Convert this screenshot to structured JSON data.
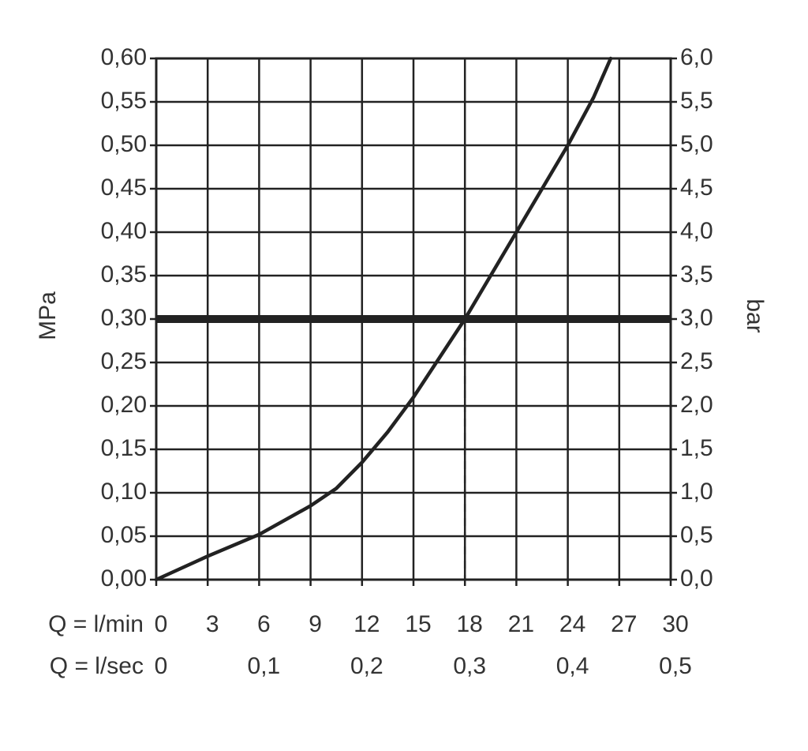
{
  "chart_data": {
    "type": "line",
    "y_label": "MPa",
    "y2_label": "bar",
    "x_row_label": "Q = l/min",
    "x2_row_label": "Q = l/sec",
    "color": "#222222",
    "x": [
      0,
      3,
      6,
      9,
      10.5,
      12,
      13.5,
      15,
      16.5,
      18,
      19.5,
      21,
      22.5,
      24,
      25.5,
      26.5
    ],
    "values": [
      0,
      0.027,
      0.052,
      0.085,
      0.105,
      0.135,
      0.17,
      0.21,
      0.255,
      0.3,
      0.35,
      0.4,
      0.45,
      0.5,
      0.555,
      0.6
    ],
    "xlim": [
      0,
      30
    ],
    "xticks": [
      0,
      3,
      6,
      9,
      12,
      15,
      18,
      21,
      24,
      27,
      30
    ],
    "x2lim": [
      0,
      0.5
    ],
    "x2ticks": [
      0,
      {
        "value": 0.1,
        "label": "0,1"
      },
      {
        "value": 0.2,
        "label": "0,2"
      },
      {
        "value": 0.3,
        "label": "0,3"
      },
      {
        "value": 0.4,
        "label": "0,4"
      },
      {
        "value": 0.5,
        "label": "0,5"
      }
    ],
    "ylim": [
      0,
      0.6
    ],
    "yticks": [
      {
        "value": 0,
        "label": "0,00"
      },
      {
        "value": 0.05,
        "label": "0,05"
      },
      {
        "value": 0.1,
        "label": "0,10"
      },
      {
        "value": 0.15,
        "label": "0,15"
      },
      {
        "value": 0.2,
        "label": "0,20"
      },
      {
        "value": 0.25,
        "label": "0,25"
      },
      {
        "value": 0.3,
        "label": "0,30"
      },
      {
        "value": 0.35,
        "label": "0,35"
      },
      {
        "value": 0.4,
        "label": "0,40"
      },
      {
        "value": 0.45,
        "label": "0,45"
      },
      {
        "value": 0.5,
        "label": "0,50"
      },
      {
        "value": 0.55,
        "label": "0,55"
      },
      {
        "value": 0.6,
        "label": "0,60"
      }
    ],
    "y2lim": [
      0,
      6
    ],
    "y2ticks": [
      {
        "value": 0,
        "label": "0,0"
      },
      {
        "value": 0.5,
        "label": "0,5"
      },
      {
        "value": 1,
        "label": "1,0"
      },
      {
        "value": 1.5,
        "label": "1,5"
      },
      {
        "value": 2,
        "label": "2,0"
      },
      {
        "value": 2.5,
        "label": "2,5"
      },
      {
        "value": 3,
        "label": "3,0"
      },
      {
        "value": 3.5,
        "label": "3,5"
      },
      {
        "value": 4,
        "label": "4,0"
      },
      {
        "value": 4.5,
        "label": "4,5"
      },
      {
        "value": 5,
        "label": "5,0"
      },
      {
        "value": 5.5,
        "label": "5,5"
      },
      {
        "value": 6,
        "label": "6,0"
      }
    ],
    "grid": true,
    "hline": 0.3,
    "vline": 18
  }
}
